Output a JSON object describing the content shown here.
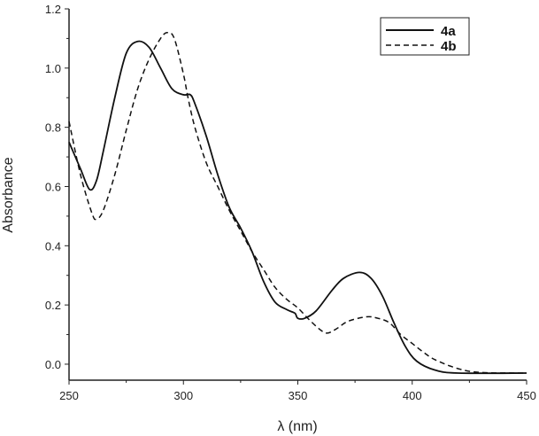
{
  "chart_data": {
    "type": "line",
    "title": "",
    "xlabel": "λ (nm)",
    "ylabel": "Absorbance",
    "xlim": [
      250,
      450
    ],
    "ylim": [
      -0.054,
      1.2
    ],
    "xticks": [
      250,
      300,
      350,
      400,
      450
    ],
    "xtick_labels": [
      "250",
      "300",
      "350",
      "400",
      "450"
    ],
    "yticks": [
      0.0,
      0.2,
      0.4,
      0.6,
      0.8,
      1.0,
      1.2
    ],
    "ytick_labels": [
      "0.0",
      "0.2",
      "0.4",
      "0.6",
      "0.8",
      "1.0",
      "1.2"
    ],
    "grid": false,
    "legend_position": "top-right",
    "series": [
      {
        "name": "4a",
        "style": "solid",
        "color": "#111111",
        "x": [
          250,
          255,
          259,
          262,
          265,
          270,
          275,
          280,
          285,
          290,
          295,
          300,
          303,
          305,
          310,
          315,
          320,
          325,
          330,
          335,
          340,
          345,
          348,
          349,
          350,
          353,
          358,
          365,
          370,
          377,
          382,
          387,
          392,
          397,
          402,
          410,
          420,
          450
        ],
        "y": [
          0.75,
          0.66,
          0.59,
          0.62,
          0.72,
          0.9,
          1.05,
          1.09,
          1.07,
          1.0,
          0.93,
          0.91,
          0.91,
          0.88,
          0.77,
          0.64,
          0.53,
          0.46,
          0.38,
          0.28,
          0.21,
          0.185,
          0.175,
          0.17,
          0.155,
          0.155,
          0.18,
          0.25,
          0.29,
          0.31,
          0.29,
          0.23,
          0.14,
          0.06,
          0.01,
          -0.02,
          -0.03,
          -0.03
        ]
      },
      {
        "name": "4b",
        "style": "dashed",
        "color": "#111111",
        "x": [
          250,
          255,
          260,
          262,
          265,
          270,
          275,
          280,
          285,
          290,
          293,
          296,
          300,
          302,
          305,
          310,
          315,
          320,
          325,
          330,
          335,
          340,
          345,
          350,
          355,
          360,
          363,
          367,
          372,
          380,
          385,
          390,
          395,
          400,
          405,
          410,
          420,
          430,
          450
        ],
        "y": [
          0.82,
          0.64,
          0.51,
          0.49,
          0.52,
          0.64,
          0.79,
          0.93,
          1.03,
          1.1,
          1.12,
          1.1,
          0.98,
          0.9,
          0.8,
          0.68,
          0.6,
          0.52,
          0.45,
          0.38,
          0.32,
          0.26,
          0.22,
          0.19,
          0.15,
          0.115,
          0.105,
          0.12,
          0.145,
          0.16,
          0.155,
          0.14,
          0.1,
          0.07,
          0.04,
          0.015,
          -0.015,
          -0.028,
          -0.03
        ]
      }
    ]
  }
}
